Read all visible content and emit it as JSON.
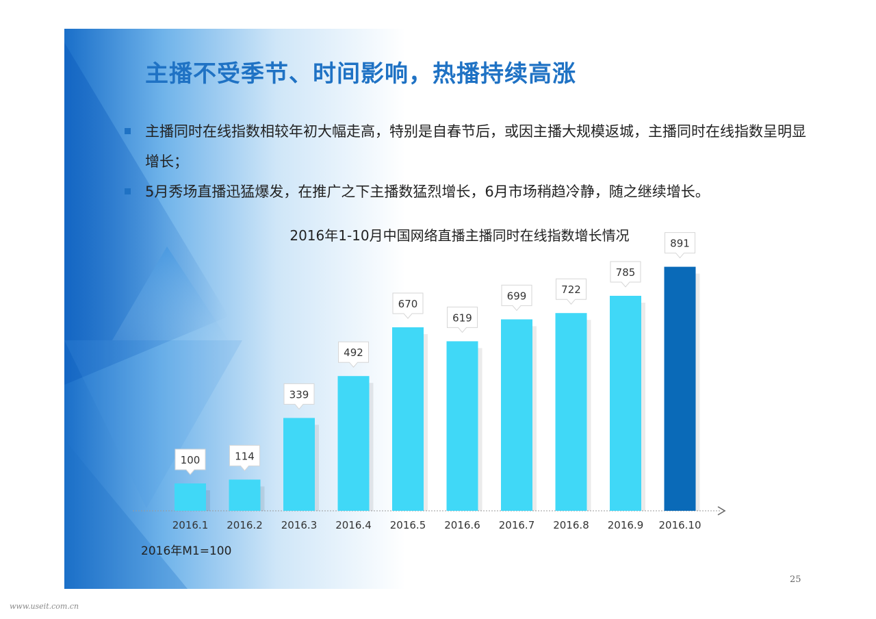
{
  "slide": {
    "title": "主播不受季节、时间影响，热播持续高涨",
    "bullets": [
      "主播同时在线指数相较年初大幅走高，特别是自春节后，或因主播大规模返城，主播同时在线指数呈明显增长；",
      "5月秀场直播迅猛爆发，在推广之下主播数猛烈增长，6月市场稍趋冷静，随之继续增长。"
    ],
    "footnote": "2016年M1=100",
    "page_number": "25"
  },
  "watermark": "www.useit.com.cn",
  "colors": {
    "title": "#1f72c4",
    "bar": "#40d8f7",
    "bar_highlight": "#0a6ab8",
    "bullet_marker": "#1f72c4"
  },
  "chart_data": {
    "type": "bar",
    "title": "2016年1-10月中国网络直播主播同时在线指数增长情况",
    "categories": [
      "2016.1",
      "2016.2",
      "2016.3",
      "2016.4",
      "2016.5",
      "2016.6",
      "2016.7",
      "2016.8",
      "2016.9",
      "2016.10"
    ],
    "values": [
      100,
      114,
      339,
      492,
      670,
      619,
      699,
      722,
      785,
      891
    ],
    "data_labels": [
      "100",
      "114",
      "339",
      "492",
      "670",
      "619",
      "699",
      "722",
      "785",
      "891"
    ],
    "highlight_index": 9,
    "ylim": [
      0,
      900
    ],
    "grid": false,
    "legend": "none"
  }
}
